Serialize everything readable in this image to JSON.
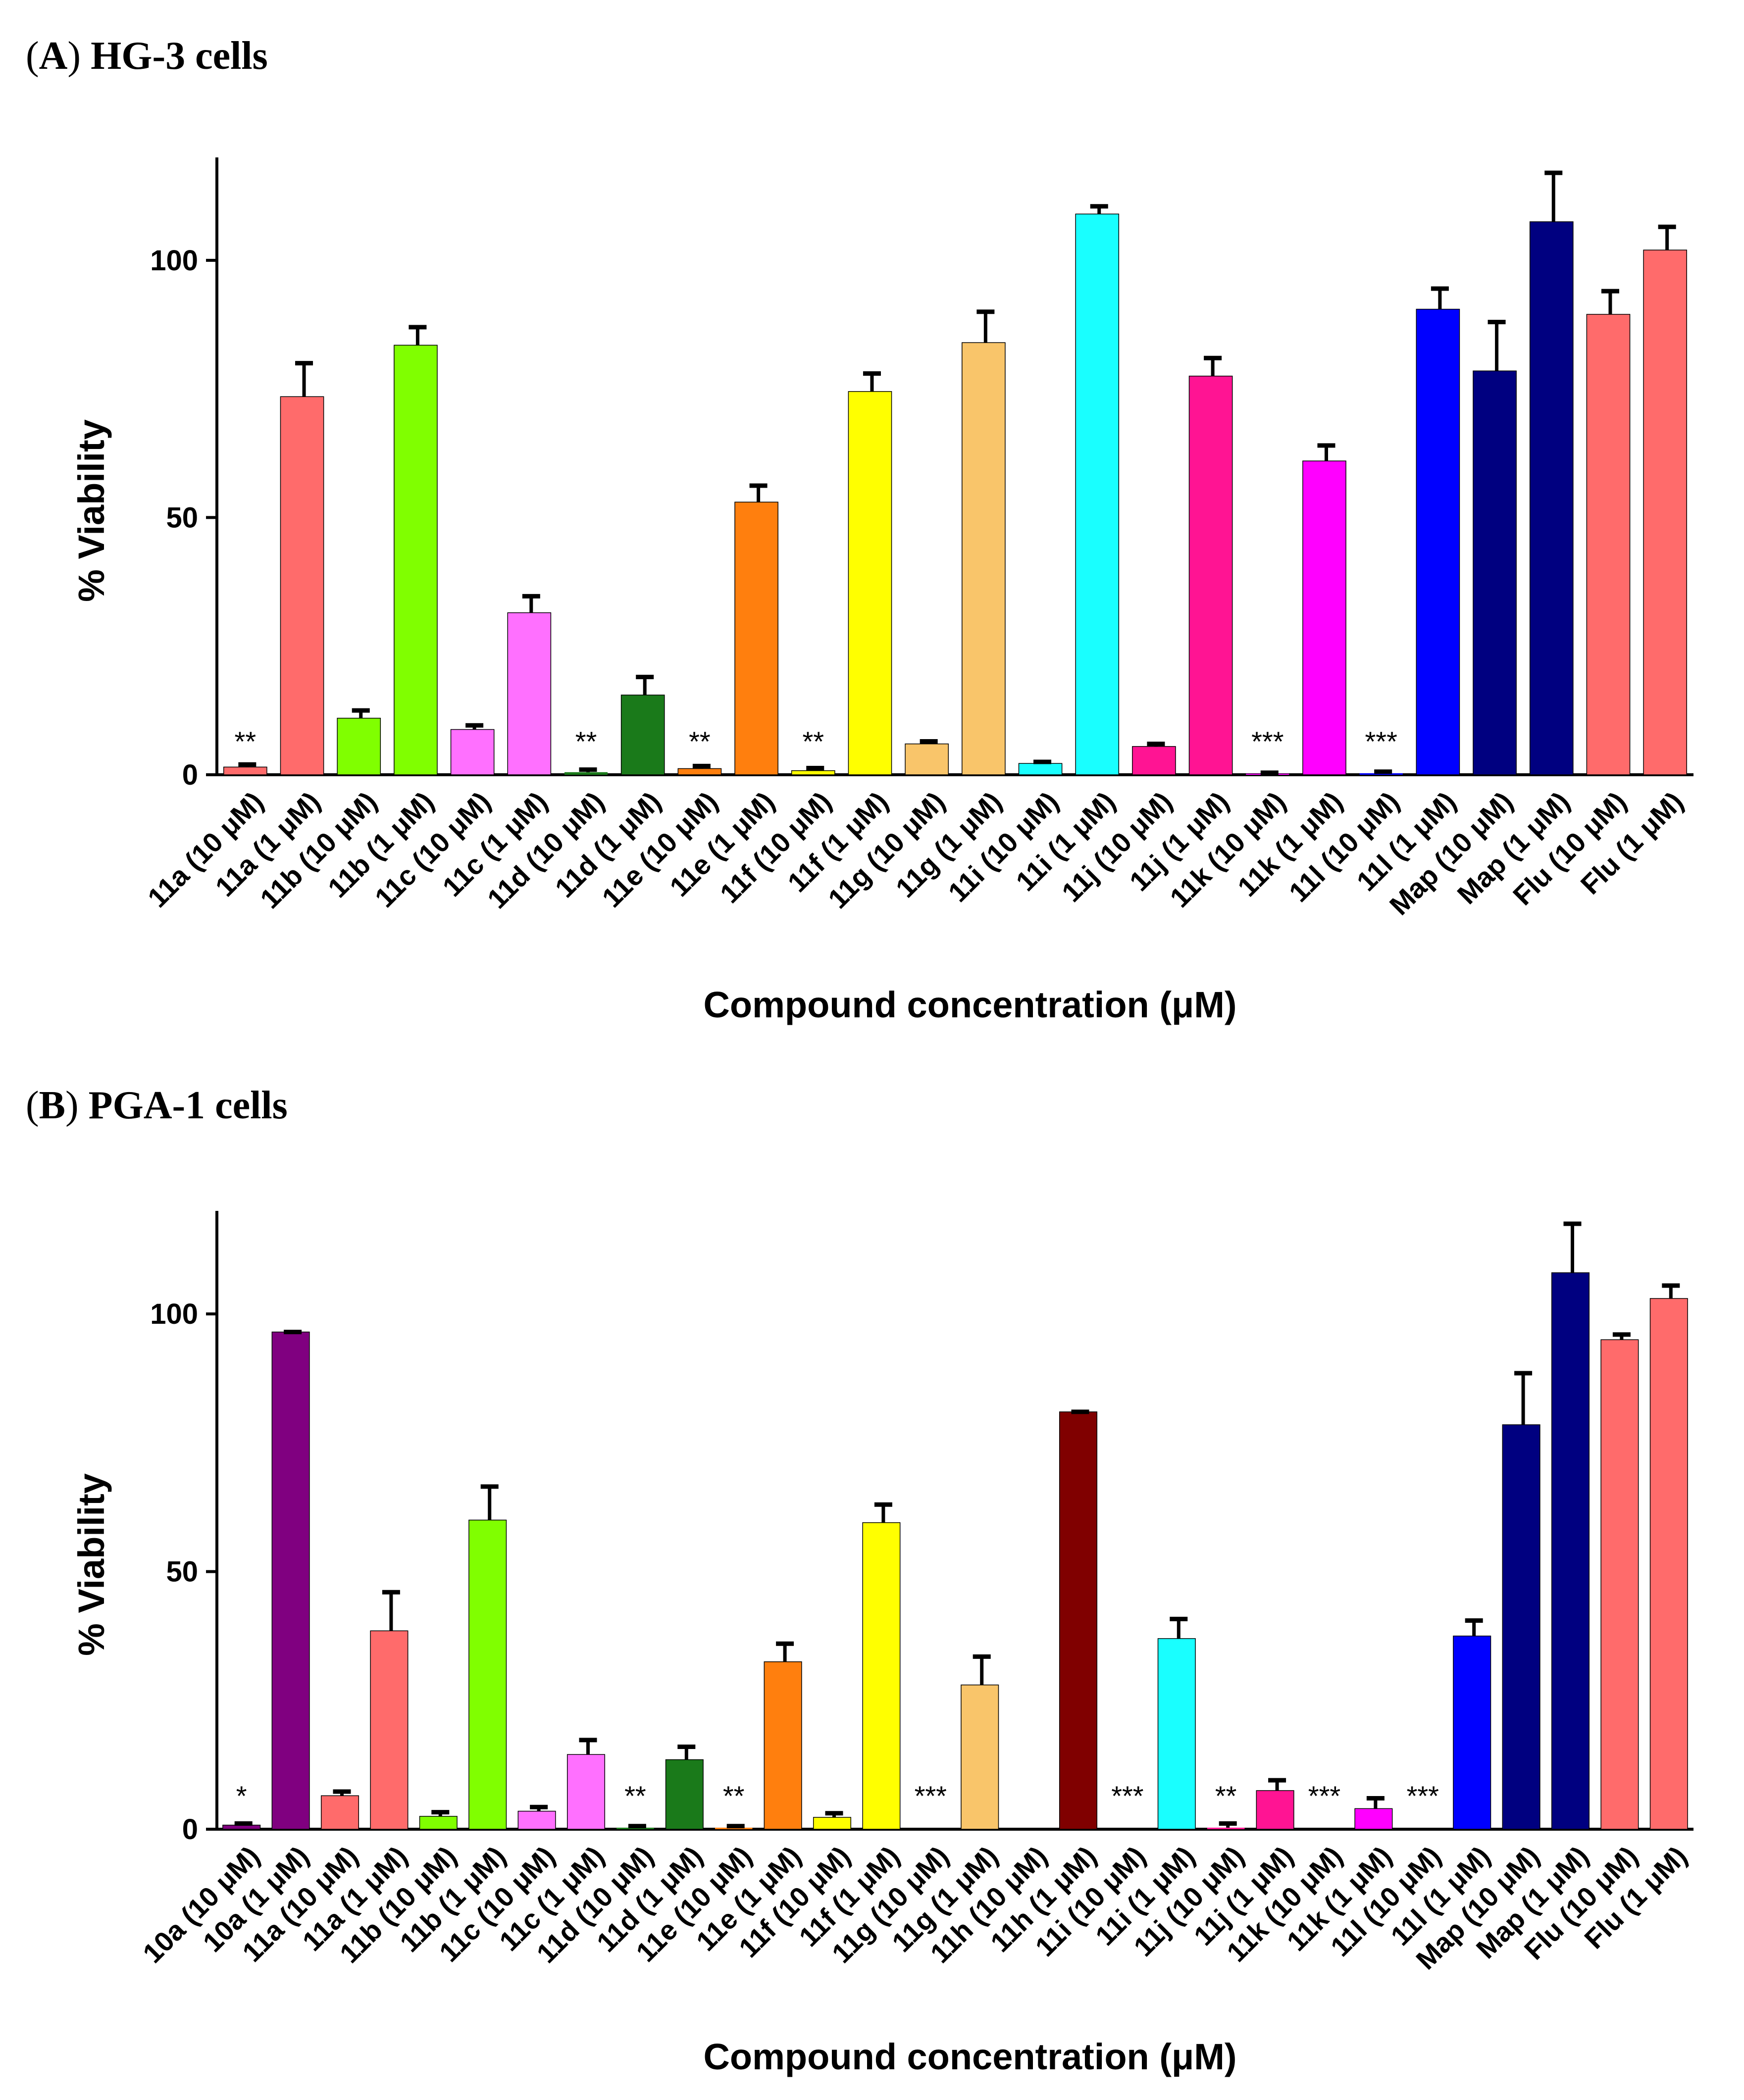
{
  "chart_data": [
    {
      "type": "bar",
      "panel_letter": "A",
      "panel_title": "HG-3 cells",
      "xlabel": "Compound concentration (μM)",
      "ylabel": "% Viability",
      "ylim": [
        0,
        120
      ],
      "yticks": [
        "0",
        "50",
        "100"
      ],
      "categories": [
        "11a (10 μM)",
        "11a (1 μM)",
        "11b (10 μM)",
        "11b (1 μM)",
        "11c (10 μM)",
        "11c (1 μM)",
        "11d (10 μM)",
        "11d (1 μM)",
        "11e (10 μM)",
        "11e (1 μM)",
        "11f (10 μM)",
        "11f (1 μM)",
        "11g (10 μM)",
        "11g (1 μM)",
        "11i (10 μM)",
        "11i (1 μM)",
        "11j (10 μM)",
        "11j (1 μM)",
        "11k (10 μM)",
        "11k (1 μM)",
        "11l (10 μM)",
        "11l (1 μM)",
        "Map (10 μM)",
        "Map (1 μM)",
        "Flu (10 μM)",
        "Flu (1 μM)"
      ],
      "values": [
        1.5,
        73.5,
        11,
        83.5,
        8.8,
        31.5,
        0.5,
        15.5,
        1.2,
        53,
        0.8,
        74.5,
        6,
        84,
        2.2,
        109,
        5.5,
        77.5,
        0.2,
        61,
        0.3,
        90.5,
        78.5,
        107.5,
        89.5,
        102
      ],
      "errors": [
        0.5,
        6.5,
        1.5,
        3.5,
        0.8,
        3.2,
        0.5,
        3.5,
        0.5,
        3.2,
        0.5,
        3.5,
        0.5,
        6,
        0.3,
        1.5,
        0.5,
        3.5,
        0.2,
        3,
        0.3,
        4,
        9.5,
        9.5,
        4.5,
        4.5
      ],
      "colors": [
        "#ff6b6b",
        "#ff6b6b",
        "#80ff00",
        "#80ff00",
        "#ff70ff",
        "#ff70ff",
        "#1a7a1a",
        "#1a7a1a",
        "#ff7f0e",
        "#ff7f0e",
        "#ffff00",
        "#ffff00",
        "#f9c56a",
        "#f9c56a",
        "#19ffff",
        "#19ffff",
        "#ff1493",
        "#ff1493",
        "#ff00ff",
        "#ff00ff",
        "#0000ff",
        "#0000ff",
        "#000080",
        "#000080",
        "#ff6b6b",
        "#ff6b6b"
      ],
      "significance": [
        "**",
        "",
        "",
        "",
        "",
        "",
        "**",
        "",
        "**",
        "",
        "**",
        "",
        "",
        "",
        "",
        "",
        "",
        "",
        "***",
        "",
        "***",
        "",
        "",
        "",
        "",
        ""
      ]
    },
    {
      "type": "bar",
      "panel_letter": "B",
      "panel_title": "PGA-1 cells",
      "xlabel": "Compound concentration (μM)",
      "ylabel": "% Viability",
      "ylim": [
        0,
        120
      ],
      "yticks": [
        "0",
        "50",
        "100"
      ],
      "categories": [
        "10a (10 μM)",
        "10a (1 μM)",
        "11a (10 μM)",
        "11a (1 μM)",
        "11b (10 μM)",
        "11b (1 μM)",
        "11c (10 μM)",
        "11c (1 μM)",
        "11d (10 μM)",
        "11d (1 μM)",
        "11e (10 μM)",
        "11e (1 μM)",
        "11f (10 μM)",
        "11f (1 μM)",
        "11g (10 μM)",
        "11g (1 μM)",
        "11h (10 μM)",
        "11h (1 μM)",
        "11i (10 μM)",
        "11i (1 μM)",
        "11j (10 μM)",
        "11j (1 μM)",
        "11k (10 μM)",
        "11k (1 μM)",
        "11l (10 μM)",
        "11l (1 μM)",
        "Map (10 μM)",
        "Map (1 μM)",
        "Flu (10 μM)",
        "Flu (1 μM)"
      ],
      "values": [
        0.8,
        96.5,
        6.5,
        38.5,
        2.5,
        60,
        3.5,
        14.5,
        0.3,
        13.5,
        0.3,
        32.5,
        2.3,
        59.5,
        0,
        28,
        0,
        81,
        0,
        37,
        0.3,
        7.5,
        0,
        4,
        0,
        37.5,
        78.5,
        108,
        95,
        103
      ],
      "errors": [
        0.3,
        0,
        0.8,
        7.5,
        0.8,
        6.5,
        0.8,
        2.8,
        0.3,
        2.5,
        0.3,
        3.5,
        0.8,
        3.5,
        0,
        5.5,
        0,
        0,
        0,
        3.8,
        0.8,
        2,
        0,
        2,
        0,
        3,
        10,
        9.5,
        1,
        2.5
      ],
      "colors": [
        "#800080",
        "#800080",
        "#ff6b6b",
        "#ff6b6b",
        "#80ff00",
        "#80ff00",
        "#ff70ff",
        "#ff70ff",
        "#1a7a1a",
        "#1a7a1a",
        "#ff7f0e",
        "#ff7f0e",
        "#ffff00",
        "#ffff00",
        "#f9c56a",
        "#f9c56a",
        "#800000",
        "#800000",
        "#19ffff",
        "#19ffff",
        "#ff1493",
        "#ff1493",
        "#ff00ff",
        "#ff00ff",
        "#0000ff",
        "#0000ff",
        "#000080",
        "#000080",
        "#ff6b6b",
        "#ff6b6b"
      ],
      "significance": [
        "*",
        "",
        "",
        "",
        "",
        "",
        "",
        "",
        "**",
        "",
        "**",
        "",
        "",
        "",
        "***",
        "",
        "",
        "",
        "***",
        "",
        "**",
        "",
        "***",
        "",
        "***",
        "",
        "",
        "",
        "",
        ""
      ]
    }
  ]
}
